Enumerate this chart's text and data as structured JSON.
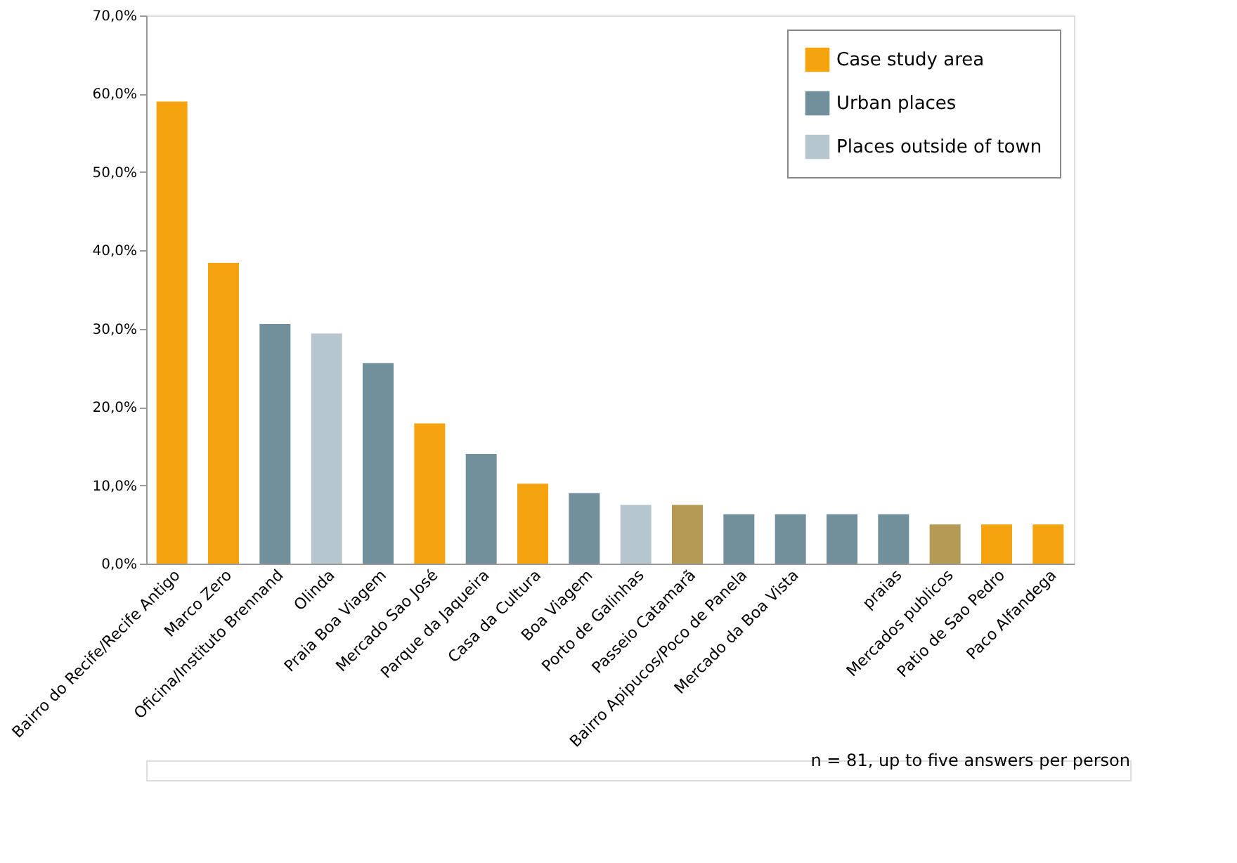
{
  "chart_data": {
    "type": "bar",
    "categories": [
      "Bairro do Recife/Recife Antigo",
      "Marco Zero",
      "Oficina/Instituto Brennand",
      "Olinda",
      "Praia Boa Viagem",
      "Mercado Sao José",
      "Parque da Jaqueira",
      "Casa da Cultura",
      "Boa Viagem",
      "Porto de Galinhas",
      "Passeio Catamarã",
      "Bairro Apipucos/Poco de Panela",
      "Mercado da Boa Vista",
      null,
      "praias",
      "Mercados publicos",
      "Patio de Sao Pedro",
      "Paco Alfandega"
    ],
    "series": [
      {
        "name": "Case study area",
        "color": "#f5a40f",
        "values": [
          59.0,
          38.4,
          null,
          null,
          null,
          17.9,
          null,
          10.2,
          null,
          null,
          7.5,
          null,
          null,
          null,
          null,
          5.0,
          5.0,
          5.0
        ],
        "colors": [
          "#f5a40f",
          "#f5a40f",
          null,
          null,
          null,
          "#f5a40f",
          null,
          "#f5a40f",
          null,
          null,
          "#b49a55",
          null,
          null,
          null,
          null,
          "#b49a55",
          "#f5a40f",
          "#f5a40f"
        ]
      },
      {
        "name": "Urban places",
        "color": "#72909c",
        "values": [
          null,
          null,
          30.6,
          null,
          25.6,
          null,
          14.0,
          null,
          9.0,
          null,
          null,
          6.3,
          6.3,
          6.3,
          6.3,
          null,
          null,
          null
        ]
      },
      {
        "name": "Places outside of town",
        "color": "#b6c6cf",
        "values": [
          null,
          null,
          null,
          29.4,
          null,
          null,
          null,
          null,
          null,
          7.5,
          null,
          null,
          null,
          null,
          null,
          null,
          null,
          null
        ]
      }
    ],
    "ylim": [
      0,
      70
    ],
    "yticks": [
      {
        "value": 0,
        "label": "0,0%"
      },
      {
        "value": 10,
        "label": "10,0%"
      },
      {
        "value": 20,
        "label": "20,0%"
      },
      {
        "value": 30,
        "label": "30,0%"
      },
      {
        "value": 40,
        "label": "40,0%"
      },
      {
        "value": 50,
        "label": "50,0%"
      },
      {
        "value": 60,
        "label": "60,0%"
      },
      {
        "value": 70,
        "label": "70,0%"
      }
    ],
    "grid": false,
    "legend": "top right",
    "annotations": [
      "n = 81, up to five answers per person"
    ]
  }
}
